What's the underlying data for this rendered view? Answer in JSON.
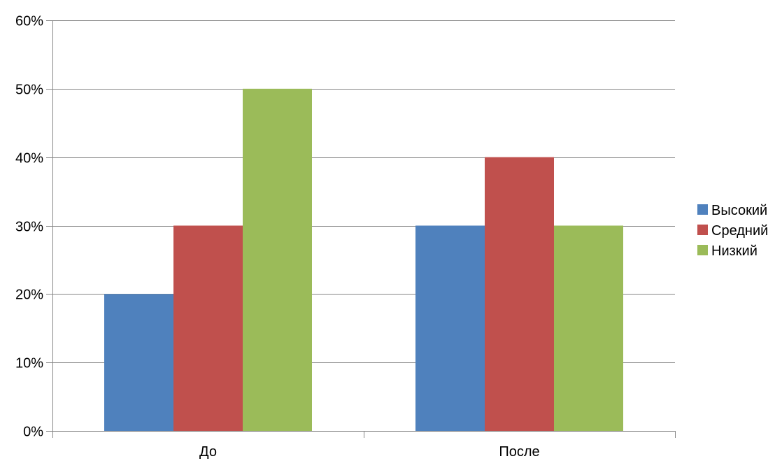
{
  "chart_data": {
    "type": "bar",
    "title": "",
    "xlabel": "",
    "ylabel": "",
    "categories": [
      "До",
      "После"
    ],
    "series": [
      {
        "name": "Высокий",
        "values": [
          20,
          30
        ],
        "color": "#4F81BD"
      },
      {
        "name": "Средний",
        "values": [
          30,
          40
        ],
        "color": "#C0504D"
      },
      {
        "name": "Низкий",
        "values": [
          50,
          30
        ],
        "color": "#9BBB59"
      }
    ],
    "ylim": [
      0,
      60
    ],
    "yticks": [
      0,
      10,
      20,
      30,
      40,
      50,
      60
    ],
    "y_tick_labels": [
      "0%",
      "10%",
      "20%",
      "30%",
      "40%",
      "50%",
      "60%"
    ],
    "grid": true,
    "legend_position": "right"
  }
}
